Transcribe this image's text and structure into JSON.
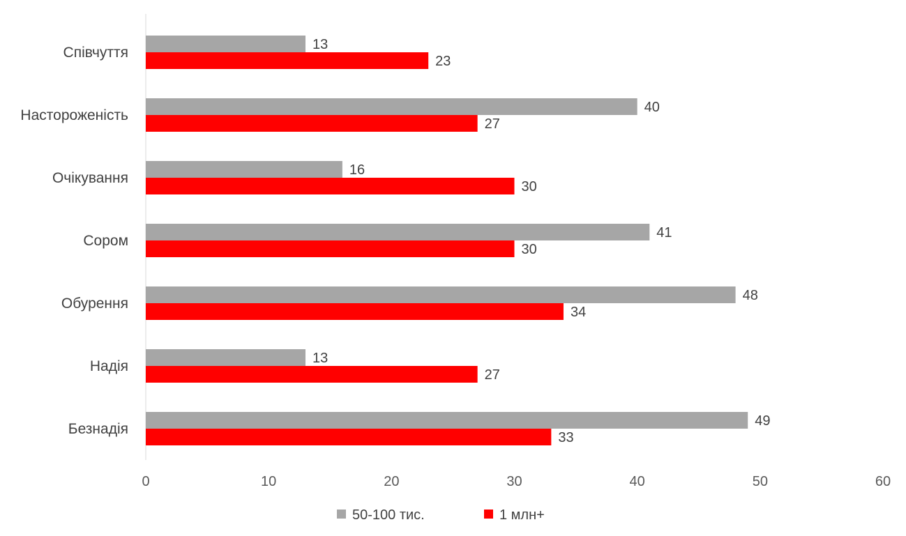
{
  "chart_data": {
    "type": "bar",
    "orientation": "horizontal",
    "categories": [
      "Співчуття",
      "Настороженість",
      "Очікування",
      "Сором ",
      "Обурення",
      "Надія",
      "Безнадія"
    ],
    "series": [
      {
        "name": "50-100 тис.",
        "color": "#a6a6a6",
        "values": [
          13,
          40,
          16,
          41,
          48,
          13,
          49
        ]
      },
      {
        "name": "1 млн+",
        "color": "#ff0000",
        "values": [
          23,
          27,
          30,
          30,
          34,
          27,
          33
        ]
      }
    ],
    "xlim": [
      0,
      60
    ],
    "xticks": [
      "0",
      "10",
      "20",
      "30",
      "40",
      "50",
      "60"
    ],
    "grid": false,
    "legend": "bottom",
    "data_labels": true,
    "title": "",
    "xlabel": "",
    "ylabel": ""
  }
}
